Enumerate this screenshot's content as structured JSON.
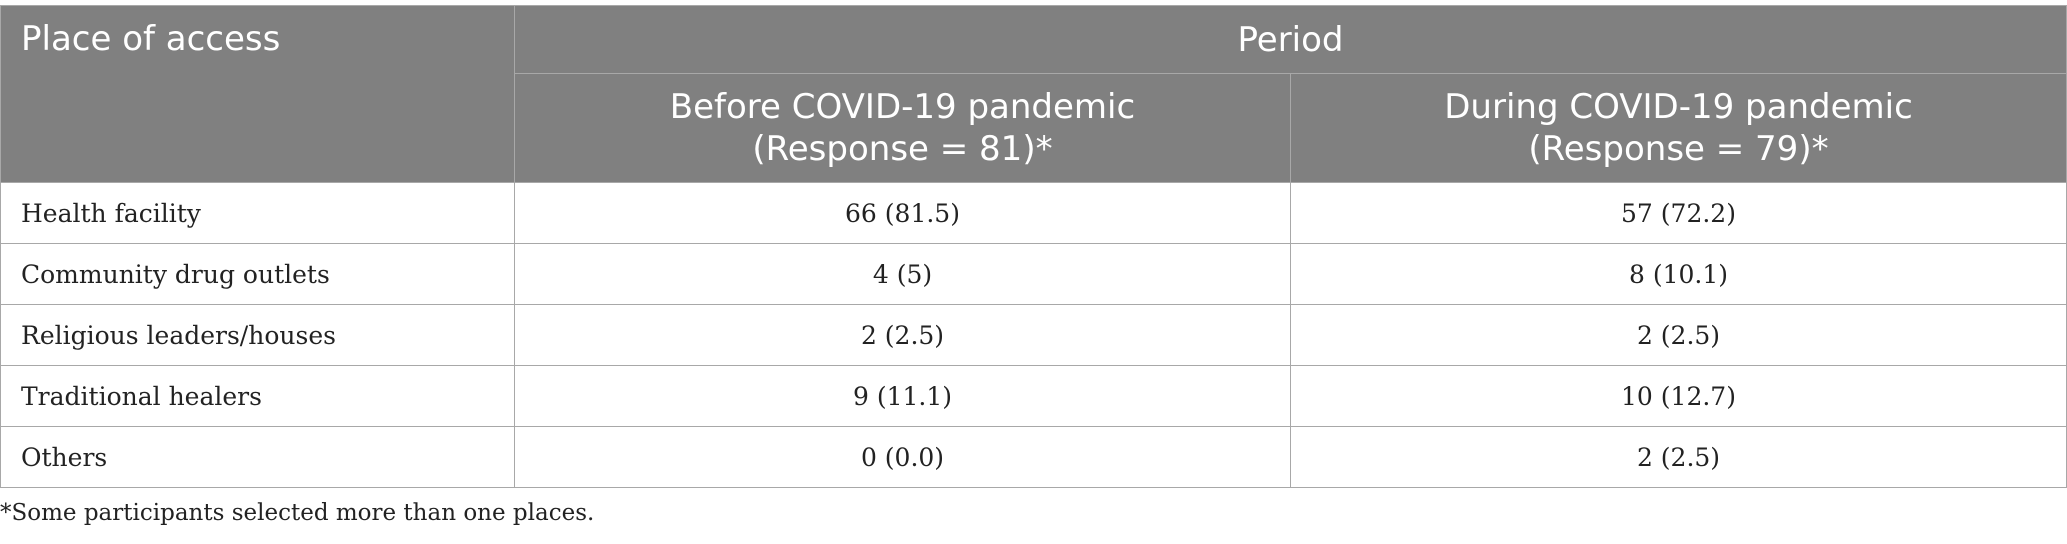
{
  "table": {
    "headers": {
      "col1": "Place of access",
      "group": "Period",
      "before": {
        "line1": "Before COVID-19 pandemic",
        "line2": "(Response = 81)*"
      },
      "during": {
        "line1": "During COVID-19 pandemic",
        "line2": "(Response = 79)*"
      }
    },
    "rows": [
      {
        "place": "Health facility",
        "before": "66 (81.5)",
        "during": "57 (72.2)"
      },
      {
        "place": "Community drug outlets",
        "before": "4 (5)",
        "during": "8 (10.1)"
      },
      {
        "place": "Religious leaders/houses",
        "before": "2 (2.5)",
        "during": "2 (2.5)"
      },
      {
        "place": "Traditional healers",
        "before": "9 (11.1)",
        "during": "10 (12.7)"
      },
      {
        "place": "Others",
        "before": "0 (0.0)",
        "during": "2 (2.5)"
      }
    ]
  },
  "footnote": "*Some participants selected more than one places."
}
